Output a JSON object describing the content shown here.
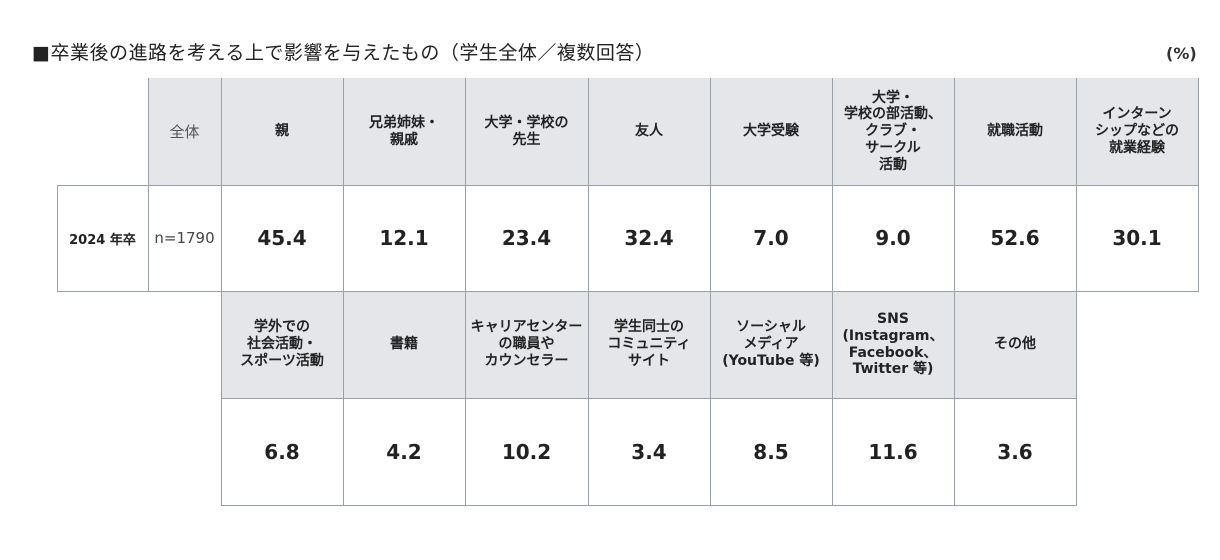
{
  "title": "■卒業後の進路を考える上で影響を与えたもの（学生全体／複数回答）",
  "unit": "(%)",
  "chart_data": {
    "type": "table",
    "row_label": "2024 年卒",
    "total_header": "全体",
    "n_label": "n=1790",
    "row1": {
      "headers": [
        "親",
        "兄弟姉妹・\n親戚",
        "大学・学校の\n先生",
        "友人",
        "大学受験",
        "大学・\n学校の部活動、\nクラブ・\nサークル\n活動",
        "就職活動",
        "インターン\nシップなどの\n就業経験"
      ],
      "values": [
        "45.4",
        "12.1",
        "23.4",
        "32.4",
        "7.0",
        "9.0",
        "52.6",
        "30.1"
      ]
    },
    "row2": {
      "headers": [
        "学外での\n社会活動・\nスポーツ活動",
        "書籍",
        "キャリアセンター\nの職員や\nカウンセラー",
        "学生同士の\nコミュニティ\nサイト",
        "ソーシャル\nメディア\n(YouTube 等)",
        "SNS\n(Instagram、\nFacebook、\nTwitter 等)",
        "その他"
      ],
      "values": [
        "6.8",
        "4.2",
        "10.2",
        "3.4",
        "8.5",
        "11.6",
        "3.6"
      ]
    }
  }
}
